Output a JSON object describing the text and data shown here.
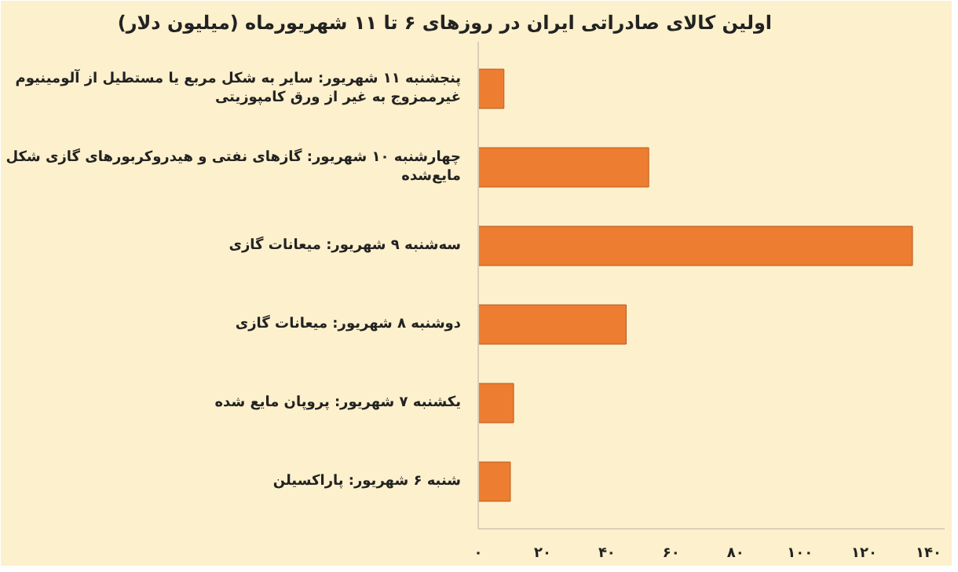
{
  "chart_data": {
    "type": "bar",
    "orientation": "horizontal",
    "title": "اولین کالای صادراتی ایران در روزهای ۶ تا ۱۱ شهریورماه (میلیون دلار)",
    "categories": [
      "پنجشنبه ۱۱ شهریور: سایر به شکل مربع یا مستطیل از آلومینیوم غیرممزوج به غیر از ورق کامپوزیتی",
      "چهارشنبه ۱۰ شهریور: گازهای نفتی و هیدروکربورهای گازی شکل مایع‌شده",
      "سه‌شنبه ۹ شهریور: میعانات گازی",
      "دوشنبه ۸ شهریور: میعانات گازی",
      "یکشنبه ۷ شهریور: پروپان مایع شده",
      "شنبه ۶ شهریور: پاراکسیلن"
    ],
    "values": [
      8,
      53,
      135,
      46,
      11,
      10
    ],
    "color": "#ed7d31",
    "xlim": [
      0,
      145
    ],
    "xticks": [
      {
        "value": 0,
        "label": "۰"
      },
      {
        "value": 20,
        "label": "۲۰"
      },
      {
        "value": 40,
        "label": "۴۰"
      },
      {
        "value": 60,
        "label": "۶۰"
      },
      {
        "value": 80,
        "label": "۸۰"
      },
      {
        "value": 100,
        "label": "۱۰۰"
      },
      {
        "value": 120,
        "label": "۱۲۰"
      },
      {
        "value": 140,
        "label": "۱۴۰"
      }
    ],
    "grid": false
  }
}
